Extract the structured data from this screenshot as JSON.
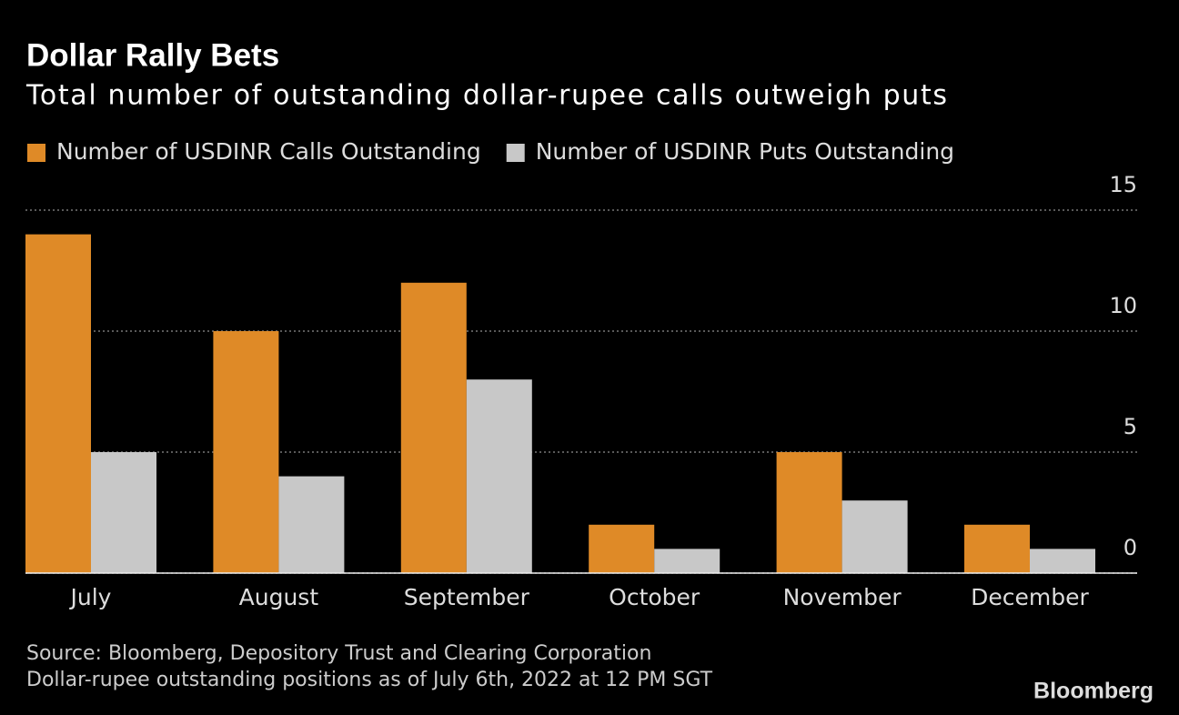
{
  "chart_data": {
    "type": "bar",
    "title": "Dollar Rally Bets",
    "subtitle": "Total number of outstanding dollar-rupee calls outweigh puts",
    "categories": [
      "July",
      "August",
      "September",
      "October",
      "November",
      "December"
    ],
    "series": [
      {
        "name": "Number of USDINR Calls Outstanding",
        "color": "#df8a27",
        "values": [
          14,
          10,
          12,
          2,
          5,
          2
        ]
      },
      {
        "name": "Number of USDINR Puts Outstanding",
        "color": "#c8c8c8",
        "values": [
          5,
          4,
          8,
          1,
          3,
          1
        ]
      }
    ],
    "ylim": [
      0,
      15
    ],
    "yticks": [
      0,
      5,
      10,
      15
    ],
    "grid": true,
    "legend": "top-left",
    "source": "Source: Bloomberg, Depository Trust and Clearing Corporation",
    "note": "Dollar-rupee outstanding positions as of July 6th, 2022 at 12 PM SGT",
    "brand": "Bloomberg"
  }
}
